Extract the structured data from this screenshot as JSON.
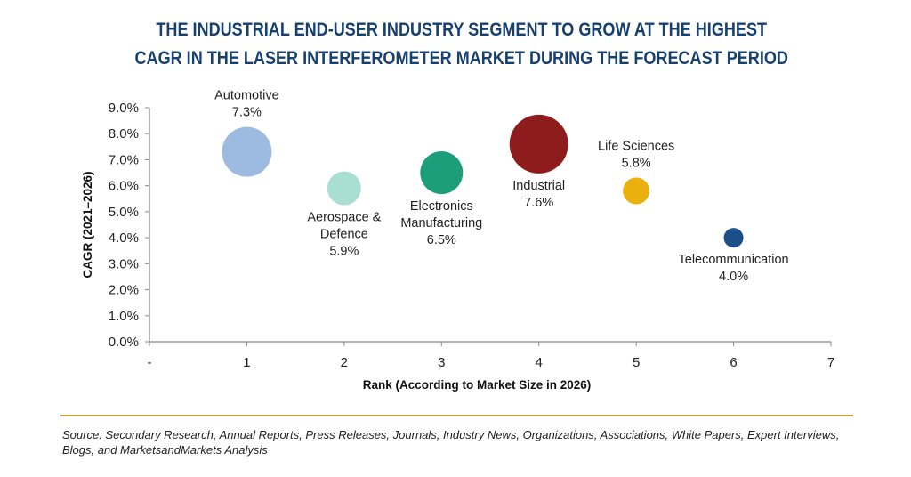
{
  "title_lines": [
    "THE INDUSTRIAL END-USER INDUSTRY SEGMENT TO GROW AT THE HIGHEST",
    "CAGR IN THE LASER INTERFEROMETER MARKET DURING THE FORECAST PERIOD"
  ],
  "source_text": "Source: Secondary Research, Annual Reports, Press Releases, Journals, Industry News, Organizations, Associations, White Papers, Expert Interviews, Blogs, and MarketsandMarkets Analysis",
  "chart_data": {
    "type": "scatter",
    "subtype": "bubble",
    "xlabel": "Rank (According to Market Size in 2026)",
    "ylabel": "CAGR (2021–2026)",
    "xlim": [
      0,
      7
    ],
    "ylim": [
      0,
      9
    ],
    "x_ticks": [
      "-",
      "1",
      "2",
      "3",
      "4",
      "5",
      "6",
      "7"
    ],
    "y_ticks": [
      "0.0%",
      "1.0%",
      "2.0%",
      "3.0%",
      "4.0%",
      "5.0%",
      "6.0%",
      "7.0%",
      "8.0%",
      "9.0%"
    ],
    "grid": false,
    "legend": "none",
    "points": [
      {
        "name": "Automotive",
        "label_lines": [
          "Automotive"
        ],
        "value_label": "7.3%",
        "x": 1,
        "y": 7.3,
        "size": 5,
        "color": "#9dbbe0",
        "label_pos": "above"
      },
      {
        "name": "Aerospace & Defence",
        "label_lines": [
          "Aerospace &",
          "Defence"
        ],
        "value_label": "5.9%",
        "x": 2,
        "y": 5.9,
        "size": 3,
        "color": "#a9ded2",
        "label_pos": "below"
      },
      {
        "name": "Electronics Manufacturing",
        "label_lines": [
          "Electronics",
          "Manufacturing"
        ],
        "value_label": "6.5%",
        "x": 3,
        "y": 6.5,
        "size": 4,
        "color": "#1d9e7a",
        "label_pos": "below"
      },
      {
        "name": "Industrial",
        "label_lines": [
          "Industrial"
        ],
        "value_label": "7.6%",
        "x": 4,
        "y": 7.6,
        "size": 6,
        "color": "#8e1c1c",
        "label_pos": "below"
      },
      {
        "name": "Life Sciences",
        "label_lines": [
          "Life Sciences"
        ],
        "value_label": "5.8%",
        "x": 5,
        "y": 5.8,
        "size": 2,
        "color": "#e9b00e",
        "label_pos": "above"
      },
      {
        "name": "Telecommunication",
        "label_lines": [
          "Telecommunication"
        ],
        "value_label": "4.0%",
        "x": 6,
        "y": 4.0,
        "size": 1,
        "color": "#1c4f8a",
        "label_pos": "below"
      }
    ]
  }
}
